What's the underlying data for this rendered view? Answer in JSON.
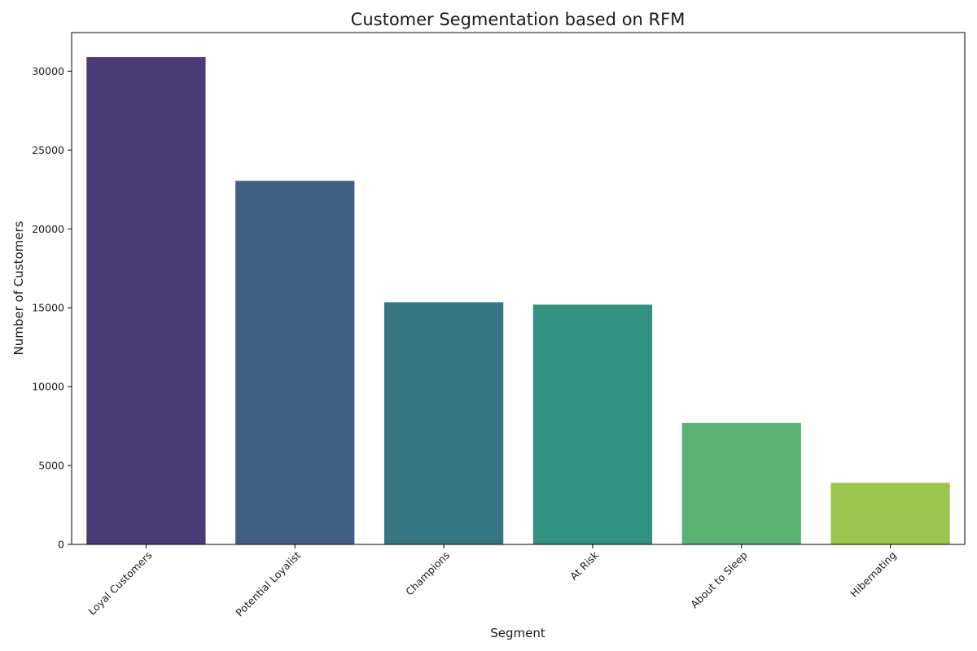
{
  "chart_data": {
    "type": "bar",
    "title": "Customer Segmentation based on RFM",
    "xlabel": "Segment",
    "ylabel": "Number of Customers",
    "categories": [
      "Loyal Customers",
      "Potential Loyalist",
      "Champions",
      "At Risk",
      "About to Sleep",
      "Hibernating"
    ],
    "values": [
      30900,
      23050,
      15350,
      15200,
      7700,
      3900
    ],
    "colors": [
      "#4a3c76",
      "#415f82",
      "#357681",
      "#32917f",
      "#5ab174",
      "#9bc54c"
    ],
    "yticks": [
      0,
      5000,
      10000,
      15000,
      20000,
      25000,
      30000
    ],
    "ylim": [
      0,
      32450
    ],
    "xtick_rotation": 45,
    "grid": false,
    "legend": false
  }
}
